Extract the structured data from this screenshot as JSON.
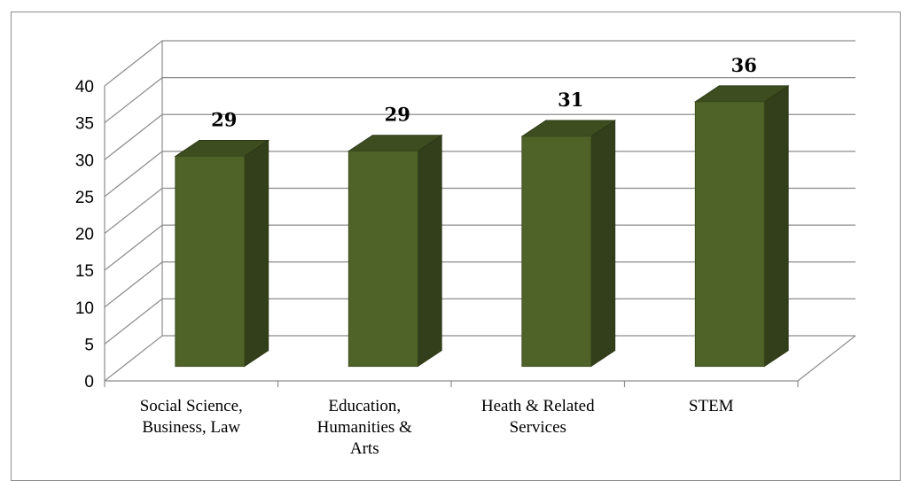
{
  "chart_data": {
    "type": "bar",
    "title": "",
    "xlabel": "",
    "ylabel": "",
    "categories": [
      [
        "Social Science,",
        "Business, Law"
      ],
      [
        "Education,",
        "Humanities &",
        "Arts"
      ],
      [
        "Heath & Related",
        "Services"
      ],
      [
        "STEM"
      ]
    ],
    "values": [
      28.5,
      29.2,
      31.2,
      35.9
    ],
    "data_labels": [
      "29",
      "29",
      "31",
      "36"
    ],
    "ylim": [
      0,
      40
    ],
    "yticks": [
      "0",
      "5",
      "10",
      "15",
      "20",
      "25",
      "30",
      "35",
      "40"
    ],
    "grid": true,
    "legend": "none",
    "style": "3d-column",
    "colors": {
      "front": "#4f6228",
      "side": "#333f1a",
      "top": "#3d4d1f",
      "grid": "#8c8c8c"
    }
  }
}
